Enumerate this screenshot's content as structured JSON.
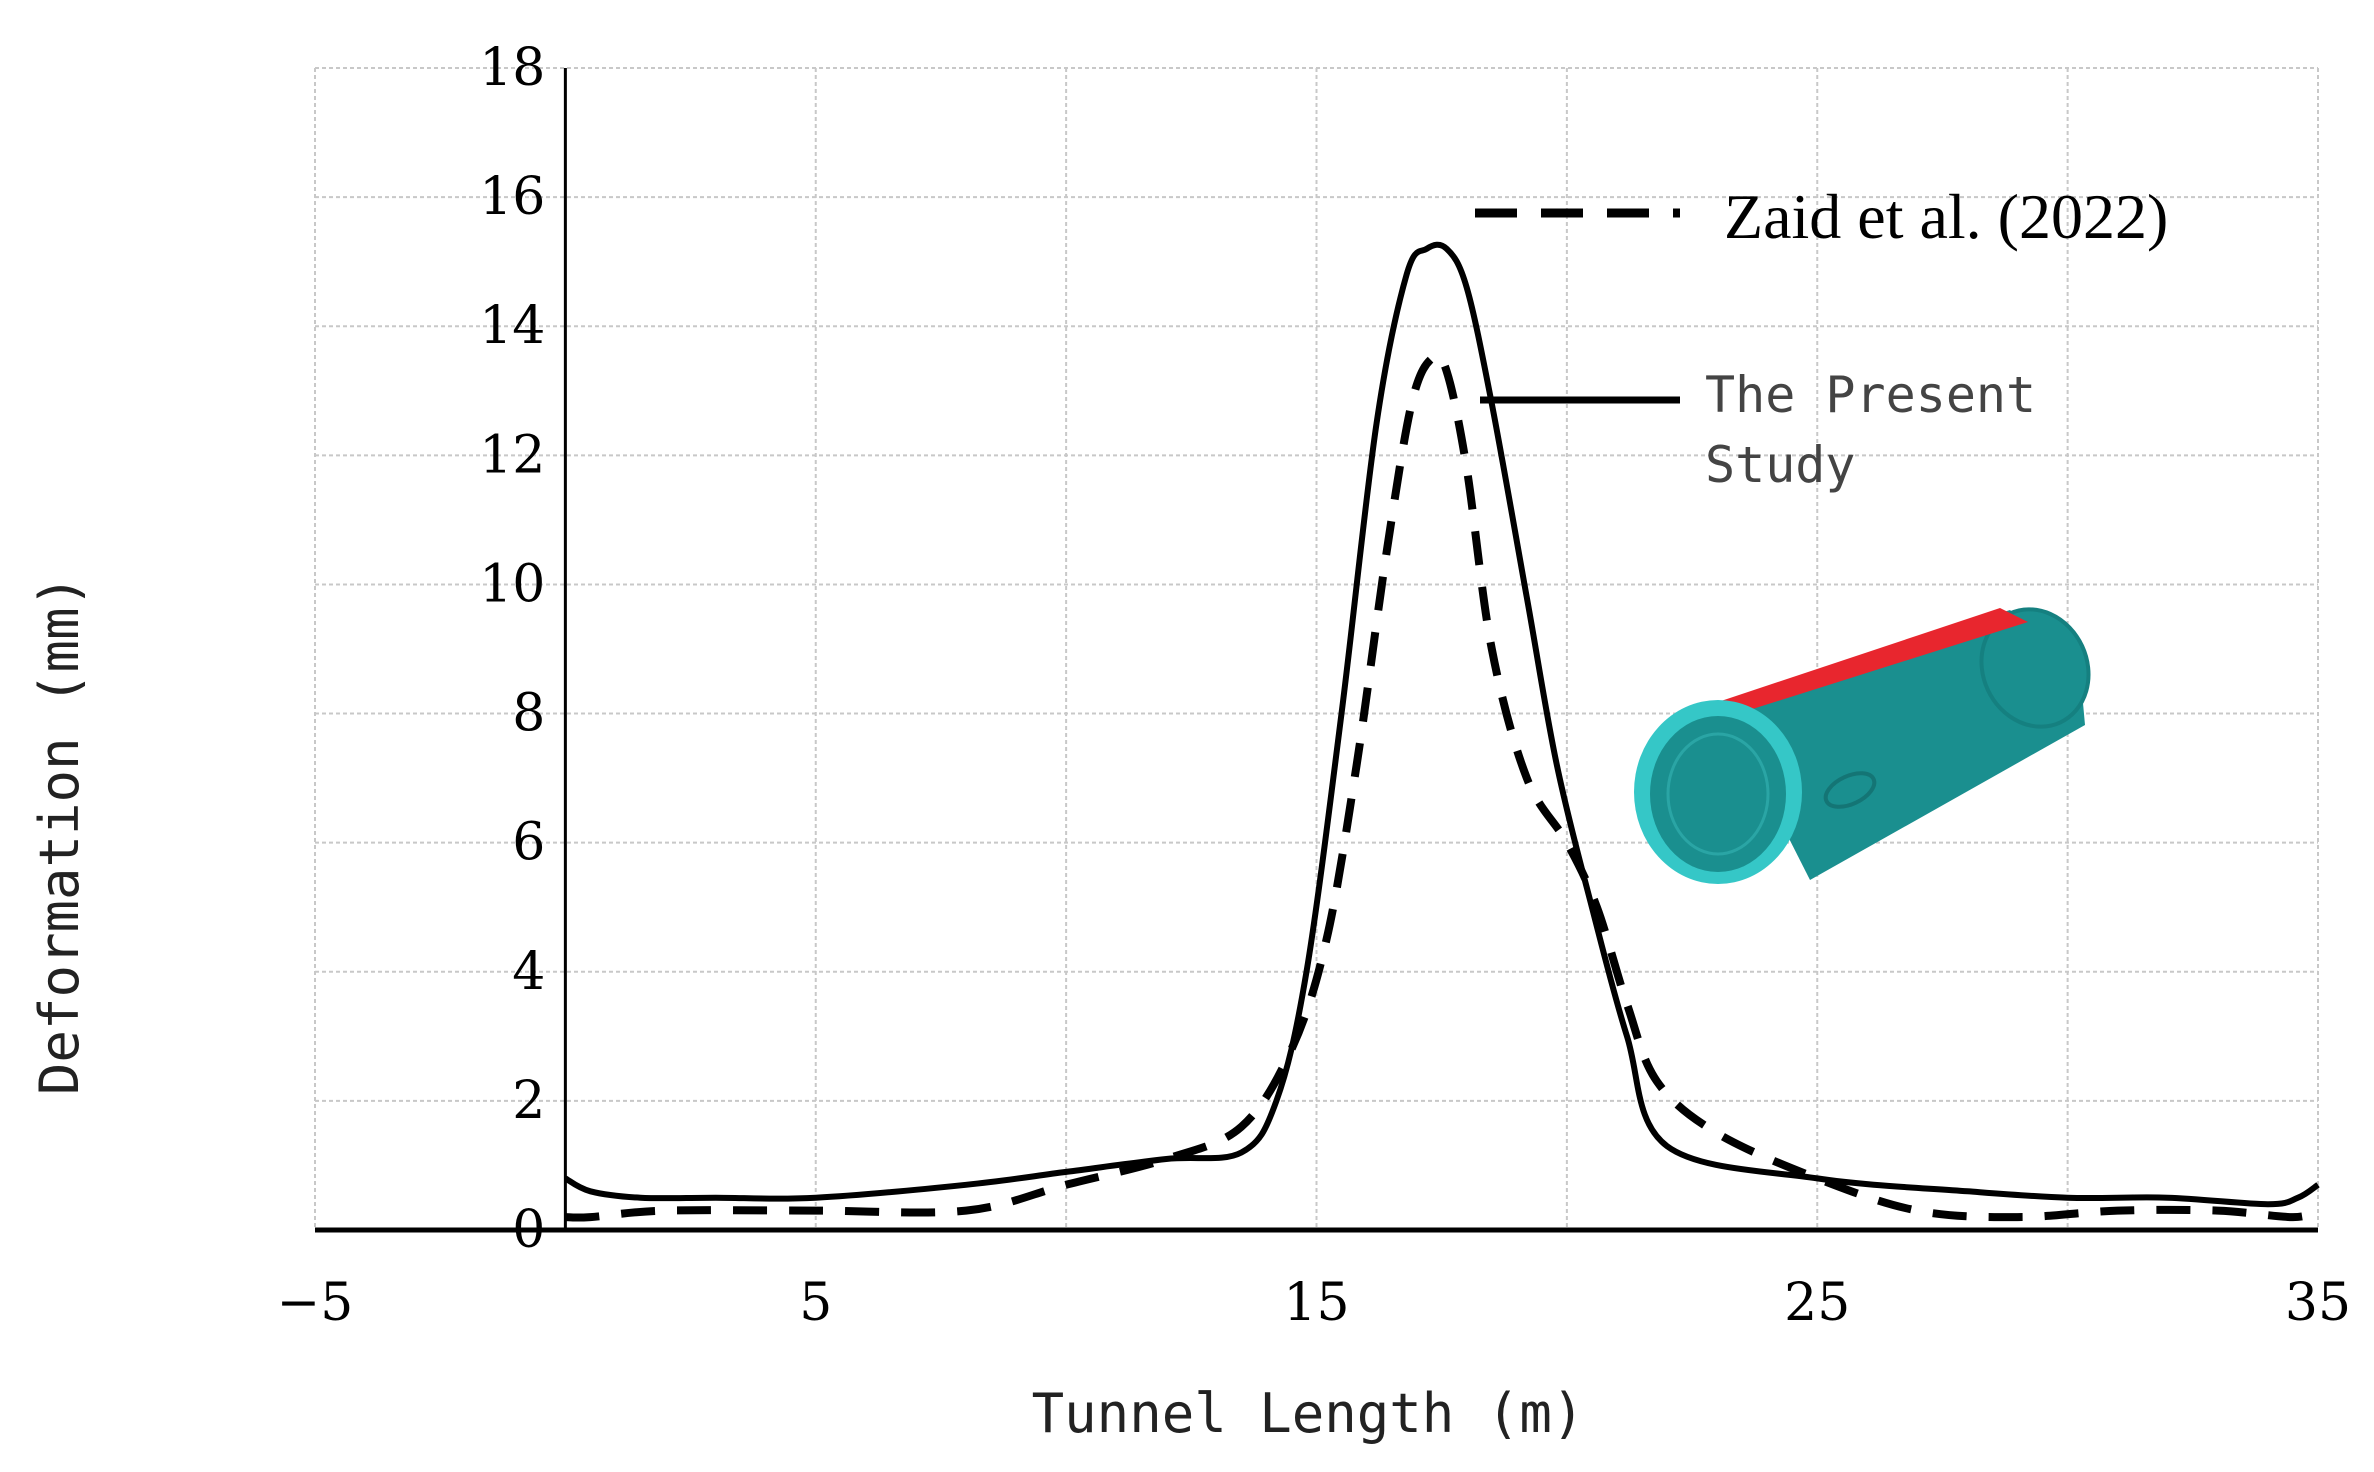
{
  "chart_data": {
    "type": "line",
    "xlabel": "Tunnel Length (m)",
    "ylabel": "Deformation (mm)",
    "xlim": [
      -5,
      35
    ],
    "ylim": [
      0,
      18
    ],
    "xticks": [
      -5,
      5,
      15,
      25,
      35
    ],
    "yticks": [
      0,
      2,
      4,
      6,
      8,
      10,
      12,
      14,
      16,
      18
    ],
    "grid": true,
    "legend_position": "upper-right",
    "series": [
      {
        "name": "Zaid et al. (2022)",
        "style": "dashed",
        "x": [
          0,
          0.5,
          2,
          5,
          8,
          10,
          12,
          13.5,
          14.5,
          15.2,
          15.8,
          16.4,
          16.9,
          17.3,
          17.6,
          18.0,
          18.5,
          19.2,
          20,
          20.6,
          21.2,
          21.8,
          23,
          25,
          27,
          29,
          31,
          33,
          34.5,
          35
        ],
        "y": [
          0.2,
          0.2,
          0.3,
          0.3,
          0.3,
          0.7,
          1.1,
          1.6,
          2.8,
          4.5,
          7.2,
          10.5,
          12.8,
          13.5,
          13.3,
          11.8,
          9.0,
          7.0,
          6.0,
          5.0,
          3.5,
          2.3,
          1.5,
          0.8,
          0.3,
          0.2,
          0.3,
          0.3,
          0.2,
          0.3
        ]
      },
      {
        "name": "The Present Study",
        "style": "solid",
        "x": [
          0,
          0.5,
          1.5,
          3,
          5,
          8,
          10,
          12,
          13.5,
          14.2,
          14.8,
          15.5,
          16.2,
          16.8,
          17.2,
          17.6,
          18.0,
          18.5,
          19.2,
          19.8,
          20.5,
          21.2,
          22,
          25,
          28,
          30,
          32,
          34,
          34.6,
          35
        ],
        "y": [
          0.8,
          0.6,
          0.5,
          0.5,
          0.5,
          0.7,
          0.9,
          1.1,
          1.2,
          2.0,
          4.0,
          8.0,
          12.5,
          14.8,
          15.2,
          15.2,
          14.6,
          12.8,
          9.8,
          7.2,
          5.0,
          3.0,
          1.3,
          0.8,
          0.6,
          0.5,
          0.5,
          0.4,
          0.5,
          0.7
        ]
      }
    ]
  },
  "legend": {
    "dashed_label": "Zaid et al. (2022)",
    "solid_label_line1": "The Present",
    "solid_label_line2": "Study"
  },
  "colors": {
    "series": "#000000",
    "grid": "#c8c8c8",
    "tunnel_body": "#1a8f8f",
    "tunnel_rim": "#35c7c7",
    "tunnel_top": "#e8262e"
  }
}
